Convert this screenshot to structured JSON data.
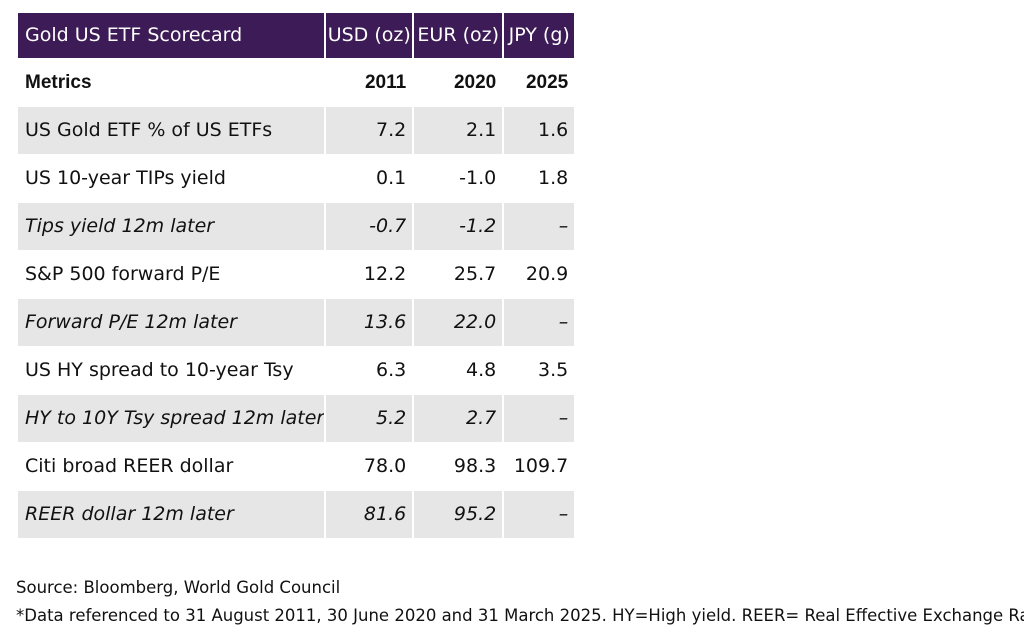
{
  "chart_data": {
    "type": "table",
    "title": "Gold US ETF Scorecard",
    "header": [
      "Gold US ETF Scorecard",
      "USD (oz)",
      "EUR (oz)",
      "JPY (g)"
    ],
    "subheader": [
      "Metrics",
      "2011",
      "2020",
      "2025"
    ],
    "rows": [
      {
        "label": "US Gold ETF % of US ETFs",
        "values": [
          "7.2",
          "2.1",
          "1.6"
        ],
        "italic": false,
        "shaded": true
      },
      {
        "label": "US 10-year TIPs yield",
        "values": [
          "0.1",
          "-1.0",
          "1.8"
        ],
        "italic": false,
        "shaded": false
      },
      {
        "label": "Tips yield 12m later",
        "values": [
          "-0.7",
          "-1.2",
          "–"
        ],
        "italic": true,
        "shaded": true
      },
      {
        "label": "S&P 500 forward P/E",
        "values": [
          "12.2",
          "25.7",
          "20.9"
        ],
        "italic": false,
        "shaded": false
      },
      {
        "label": "Forward P/E 12m later",
        "values": [
          "13.6",
          "22.0",
          "–"
        ],
        "italic": true,
        "shaded": true
      },
      {
        "label": "US HY spread to 10-year Tsy",
        "values": [
          "6.3",
          "4.8",
          "3.5"
        ],
        "italic": false,
        "shaded": false
      },
      {
        "label": "HY to 10Y Tsy spread 12m later",
        "values": [
          "5.2",
          "2.7",
          "–"
        ],
        "italic": true,
        "shaded": true
      },
      {
        "label": "Citi broad REER dollar",
        "values": [
          "78.0",
          "98.3",
          "109.7"
        ],
        "italic": false,
        "shaded": false
      },
      {
        "label": "REER dollar 12m later",
        "values": [
          "81.6",
          "95.2",
          "–"
        ],
        "italic": true,
        "shaded": true
      }
    ],
    "colors": {
      "header_bg": "#3d1b56",
      "header_text": "#ffffff",
      "shaded_row": "#e6e6e6"
    }
  },
  "notes": {
    "source": "Source: Bloomberg, World Gold Council",
    "footnote": "*Data referenced to 31 August 2011, 30 June 2020 and 31 March 2025. HY=High yield. REER= Real Effective Exchange Rate."
  }
}
